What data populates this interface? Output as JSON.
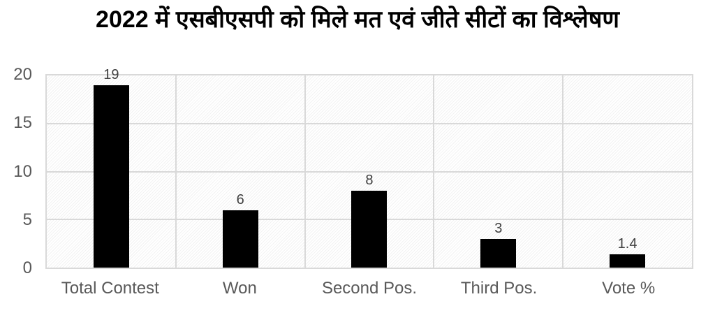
{
  "chart_data": {
    "type": "bar",
    "title": "2022 में एसबीएसपी को मिले मत एवं जीते सीटों का विश्लेषण",
    "categories": [
      "Total Contest",
      "Won",
      "Second Pos.",
      "Third Pos.",
      "Vote %"
    ],
    "values": [
      19,
      6,
      8,
      3,
      1.4
    ],
    "data_labels": [
      "19",
      "6",
      "8",
      "3",
      "1.4"
    ],
    "yticks": [
      0,
      5,
      10,
      15,
      20
    ],
    "ylim": [
      0,
      20
    ],
    "xlabel": "",
    "ylabel": "",
    "grid": true,
    "legend": false,
    "colors": {
      "bar": "#000000",
      "gridline": "#d9d9d9",
      "plot_border": "#d9d9d9",
      "axis_label": "#595959",
      "data_label": "#404040",
      "title": "#000000",
      "background": "#ffffff"
    }
  }
}
